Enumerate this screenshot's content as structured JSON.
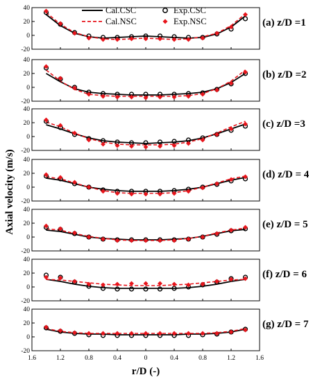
{
  "chart_data": {
    "type": "line",
    "xlabel": "r/D (-)",
    "ylabel": "Axial velocity (m/s)",
    "x_ticks": [
      "1.6",
      "1.2",
      "0.8",
      "0.4",
      "0",
      "0.4",
      "0.8",
      "1.2",
      "1.6"
    ],
    "xlim": [
      -1.6,
      1.6
    ],
    "ylim": [
      -20,
      40
    ],
    "y_ticks": [
      "-20",
      "0",
      "20",
      "40"
    ],
    "legend": {
      "position": "top",
      "entries": [
        {
          "name": "Cal.CSC",
          "style": "solid line",
          "color": "#000000"
        },
        {
          "name": "Cal.NSC",
          "style": "dashed line",
          "color": "#e8141b"
        },
        {
          "name": "Exp.CSC",
          "style": "open circle",
          "color": "#000000"
        },
        {
          "name": "Exp.NSC",
          "style": "filled diamond",
          "color": "#e8141b"
        }
      ]
    },
    "panels": [
      {
        "label": "(a) z/D =1",
        "x": [
          -1.4,
          -1.2,
          -1.0,
          -0.8,
          -0.6,
          -0.4,
          -0.2,
          0.0,
          0.2,
          0.4,
          0.6,
          0.8,
          1.0,
          1.2,
          1.4
        ],
        "series": [
          {
            "name": "Cal.CSC",
            "values": [
              30,
              14,
              3,
              -2,
              -4,
              -3,
              -2,
              -1,
              -2,
              -3,
              -4,
              -3,
              2,
              12,
              28
            ]
          },
          {
            "name": "Cal.NSC",
            "values": [
              33,
              16,
              4,
              -2,
              -5,
              -6,
              -5,
              -4,
              -5,
              -6,
              -5,
              -2,
              3,
              14,
              31
            ]
          },
          {
            "name": "Exp.CSC",
            "values": [
              33,
              16,
              4,
              -1,
              -3,
              -3,
              -2,
              -1,
              -1,
              -2,
              -3,
              -3,
              2,
              9,
              24
            ]
          },
          {
            "name": "Exp.NSC",
            "values": [
              35,
              17,
              3,
              -4,
              -6,
              -6,
              -5,
              -5,
              -5,
              -6,
              -6,
              -4,
              3,
              12,
              30
            ]
          }
        ]
      },
      {
        "label": "(b) z/D =2",
        "x": [
          -1.4,
          -1.2,
          -1.0,
          -0.8,
          -0.6,
          -0.4,
          -0.2,
          0.0,
          0.2,
          0.4,
          0.6,
          0.8,
          1.0,
          1.2,
          1.4
        ],
        "series": [
          {
            "name": "Cal.CSC",
            "values": [
              20,
              8,
              -2,
              -7,
              -9,
              -10,
              -11,
              -11,
              -11,
              -10,
              -9,
              -7,
              -2,
              7,
              20
            ]
          },
          {
            "name": "Cal.NSC",
            "values": [
              25,
              9,
              -3,
              -10,
              -12,
              -13,
              -13,
              -13,
              -13,
              -13,
              -12,
              -9,
              -2,
              9,
              25
            ]
          },
          {
            "name": "Exp.CSC",
            "values": [
              28,
              12,
              0,
              -7,
              -9,
              -10,
              -10,
              -10,
              -10,
              -10,
              -9,
              -8,
              -3,
              5,
              20
            ]
          },
          {
            "name": "Exp.NSC",
            "values": [
              30,
              13,
              -1,
              -10,
              -13,
              -14,
              -14,
              -15,
              -14,
              -14,
              -13,
              -10,
              -4,
              6,
              22
            ]
          }
        ]
      },
      {
        "label": "(c) z/D =3",
        "x": [
          -1.4,
          -1.2,
          -1.0,
          -0.8,
          -0.6,
          -0.4,
          -0.2,
          0.0,
          0.2,
          0.4,
          0.6,
          0.8,
          1.0,
          1.2,
          1.4
        ],
        "series": [
          {
            "name": "Cal.CSC",
            "values": [
              17,
              11,
              4,
              -2,
              -6,
              -8,
              -9,
              -10,
              -9,
              -8,
              -6,
              -2,
              4,
              11,
              18
            ]
          },
          {
            "name": "Cal.NSC",
            "values": [
              21,
              14,
              5,
              -3,
              -8,
              -11,
              -12,
              -12,
              -12,
              -11,
              -8,
              -3,
              5,
              14,
              22
            ]
          },
          {
            "name": "Exp.CSC",
            "values": [
              22,
              13,
              3,
              -3,
              -6,
              -8,
              -9,
              -9,
              -8,
              -7,
              -5,
              -2,
              3,
              9,
              15
            ]
          },
          {
            "name": "Exp.NSC",
            "values": [
              24,
              16,
              5,
              -5,
              -11,
              -13,
              -14,
              -15,
              -14,
              -13,
              -10,
              -5,
              3,
              11,
              18
            ]
          }
        ]
      },
      {
        "label": "(d) z/D = 4",
        "x": [
          -1.4,
          -1.2,
          -1.0,
          -0.8,
          -0.6,
          -0.4,
          -0.2,
          0.0,
          0.2,
          0.4,
          0.6,
          0.8,
          1.0,
          1.2,
          1.4
        ],
        "series": [
          {
            "name": "Cal.CSC",
            "values": [
              13,
              10,
              5,
              0,
              -3,
              -5,
              -6,
              -6,
              -6,
              -5,
              -3,
              0,
              5,
              10,
              14
            ]
          },
          {
            "name": "Cal.NSC",
            "values": [
              15,
              12,
              6,
              0,
              -5,
              -8,
              -9,
              -9,
              -9,
              -8,
              -5,
              0,
              6,
              12,
              16
            ]
          },
          {
            "name": "Exp.CSC",
            "values": [
              16,
              12,
              5,
              0,
              -4,
              -6,
              -6,
              -6,
              -6,
              -5,
              -3,
              0,
              4,
              9,
              12
            ]
          },
          {
            "name": "Exp.NSC",
            "values": [
              18,
              14,
              7,
              0,
              -6,
              -9,
              -10,
              -10,
              -10,
              -9,
              -6,
              -1,
              5,
              11,
              15
            ]
          }
        ]
      },
      {
        "label": "(e) z/D = 5",
        "x": [
          -1.4,
          -1.2,
          -1.0,
          -0.8,
          -0.6,
          -0.4,
          -0.2,
          0.0,
          0.2,
          0.4,
          0.6,
          0.8,
          1.0,
          1.2,
          1.4
        ],
        "series": [
          {
            "name": "Cal.CSC",
            "values": [
              10,
              8,
              4,
              0,
              -2,
              -3,
              -4,
              -4,
              -4,
              -3,
              -2,
              1,
              5,
              9,
              11
            ]
          },
          {
            "name": "Cal.NSC",
            "values": [
              12,
              10,
              5,
              1,
              -2,
              -4,
              -5,
              -5,
              -5,
              -4,
              -2,
              1,
              6,
              10,
              13
            ]
          },
          {
            "name": "Exp.CSC",
            "values": [
              14,
              11,
              5,
              0,
              -3,
              -4,
              -4,
              -4,
              -4,
              -4,
              -3,
              0,
              4,
              9,
              12
            ]
          },
          {
            "name": "Exp.NSC",
            "values": [
              16,
              12,
              6,
              0,
              -3,
              -5,
              -5,
              -5,
              -5,
              -5,
              -3,
              0,
              5,
              10,
              14
            ]
          }
        ]
      },
      {
        "label": "(f) z/D = 6",
        "x": [
          -1.4,
          -1.2,
          -1.0,
          -0.8,
          -0.6,
          -0.4,
          -0.2,
          0.0,
          0.2,
          0.4,
          0.6,
          0.8,
          1.0,
          1.2,
          1.4
        ],
        "series": [
          {
            "name": "Cal.CSC",
            "values": [
              11,
              8,
              4,
              1,
              -1,
              -2,
              -2,
              -2,
              -2,
              -2,
              -1,
              1,
              4,
              8,
              11
            ]
          },
          {
            "name": "Cal.NSC",
            "values": [
              11,
              10,
              8,
              6,
              4,
              3,
              2,
              2,
              2,
              3,
              4,
              6,
              8,
              10,
              11
            ]
          },
          {
            "name": "Exp.CSC",
            "values": [
              17,
              14,
              7,
              1,
              -2,
              -3,
              -3,
              -3,
              -3,
              -2,
              0,
              3,
              7,
              12,
              14
            ]
          },
          {
            "name": "Exp.NSC",
            "values": [
              14,
              13,
              8,
              4,
              3,
              4,
              5,
              5,
              5,
              4,
              3,
              4,
              8,
              11,
              12
            ]
          }
        ]
      },
      {
        "label": "(g) z/D = 7",
        "x": [
          -1.4,
          -1.2,
          -1.0,
          -0.8,
          -0.6,
          -0.4,
          -0.2,
          0.0,
          0.2,
          0.4,
          0.6,
          0.8,
          1.0,
          1.2,
          1.4
        ],
        "series": [
          {
            "name": "Cal.CSC",
            "values": [
              11,
              7,
              5,
              4,
              4,
              3,
              3,
              3,
              3,
              3,
              4,
              4,
              5,
              7,
              11
            ]
          },
          {
            "name": "Cal.NSC",
            "values": [
              12,
              8,
              6,
              5,
              5,
              5,
              5,
              5,
              5,
              5,
              5,
              5,
              6,
              8,
              12
            ]
          },
          {
            "name": "Exp.CSC",
            "values": [
              13,
              8,
              5,
              3,
              2,
              2,
              2,
              2,
              2,
              2,
              2,
              3,
              4,
              7,
              11
            ]
          },
          {
            "name": "Exp.NSC",
            "values": [
              14,
              9,
              6,
              5,
              5,
              5,
              5,
              5,
              5,
              5,
              5,
              5,
              5,
              7,
              10
            ]
          }
        ]
      }
    ]
  }
}
